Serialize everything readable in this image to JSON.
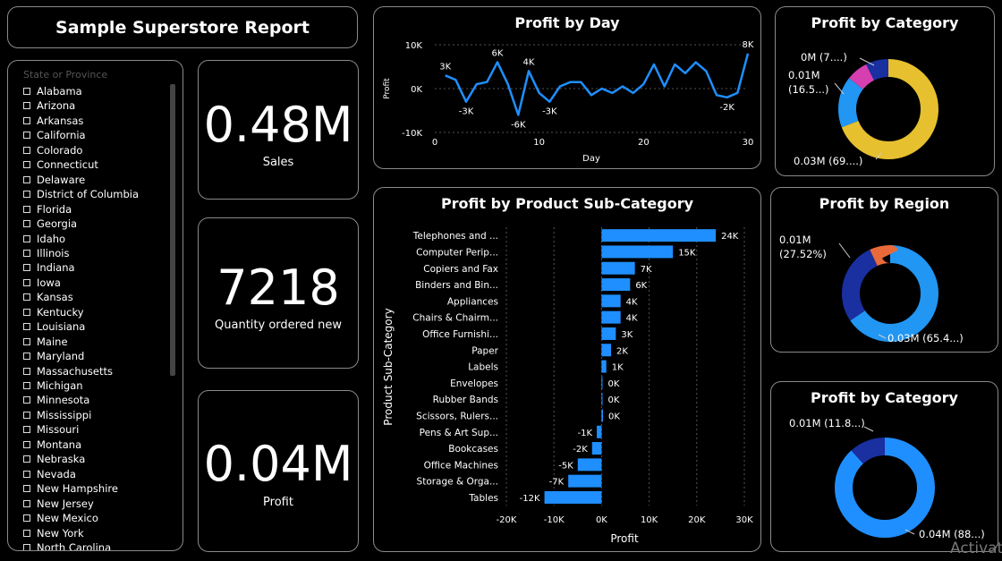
{
  "report_title": "Sample Superstore Report",
  "slicer": {
    "placeholder": "State or Province",
    "states": [
      "Alabama",
      "Arizona",
      "Arkansas",
      "California",
      "Colorado",
      "Connecticut",
      "Delaware",
      "District of Columbia",
      "Florida",
      "Georgia",
      "Idaho",
      "Illinois",
      "Indiana",
      "Iowa",
      "Kansas",
      "Kentucky",
      "Louisiana",
      "Maine",
      "Maryland",
      "Massachusetts",
      "Michigan",
      "Minnesota",
      "Mississippi",
      "Missouri",
      "Montana",
      "Nebraska",
      "Nevada",
      "New Hampshire",
      "New Jersey",
      "New Mexico",
      "New York",
      "North Carolina"
    ]
  },
  "kpis": [
    {
      "value": "0.48M",
      "label": "Sales"
    },
    {
      "value": "7218",
      "label": "Quantity ordered new"
    },
    {
      "value": "0.04M",
      "label": "Profit"
    }
  ],
  "watermark": "Activat",
  "colors": {
    "accent": "#1f8fff",
    "gold": "#e6c02e",
    "pink": "#d63fb0",
    "navy": "#1a2fa0",
    "orange": "#e86a3a",
    "blue": "#2196f3"
  },
  "chart_data": [
    {
      "type": "line",
      "title": "Profit by Day",
      "xlabel": "Day",
      "ylabel": "Profit",
      "xlim": [
        0,
        30
      ],
      "ylim": [
        -10000,
        10000
      ],
      "xticks": [
        "0",
        "10",
        "20",
        "30"
      ],
      "yticks": [
        "10K",
        "0K",
        "-10K"
      ],
      "x": [
        1,
        2,
        3,
        4,
        5,
        6,
        7,
        8,
        9,
        10,
        11,
        12,
        13,
        14,
        15,
        16,
        17,
        18,
        19,
        20,
        21,
        22,
        23,
        24,
        25,
        26,
        27,
        28,
        29,
        30
      ],
      "series": [
        {
          "values": [
            3000,
            2000,
            -3000,
            1000,
            1500,
            6000,
            1000,
            -6000,
            4000,
            -1000,
            -3000,
            500,
            1500,
            1500,
            -1500,
            0,
            -1000,
            500,
            -1000,
            1000,
            5500,
            500,
            5500,
            3500,
            6000,
            4000,
            -1500,
            -2000,
            -1000,
            8000
          ]
        }
      ],
      "data_labels": [
        {
          "i": 0,
          "text": "3K"
        },
        {
          "i": 2,
          "text": "-3K"
        },
        {
          "i": 5,
          "text": "6K"
        },
        {
          "i": 7,
          "text": "-6K"
        },
        {
          "i": 8,
          "text": "4K"
        },
        {
          "i": 10,
          "text": "-3K"
        },
        {
          "i": 27,
          "text": "-2K"
        },
        {
          "i": 29,
          "text": "8K"
        }
      ]
    },
    {
      "type": "bar",
      "orientation": "horizontal",
      "title": "Profit by Product Sub-Category",
      "xlabel": "Profit",
      "ylabel": "Product Sub-Category",
      "xlim": [
        -20000,
        30000
      ],
      "xticks": [
        "-20K",
        "-10K",
        "0K",
        "10K",
        "20K",
        "30K"
      ],
      "categories": [
        "Telephones and ...",
        "Computer Perip...",
        "Copiers and Fax",
        "Binders and Bin...",
        "Appliances",
        "Chairs & Chairm...",
        "Office Furnishi...",
        "Paper",
        "Labels",
        "Envelopes",
        "Rubber Bands",
        "Scissors, Rulers...",
        "Pens & Art Sup...",
        "Bookcases",
        "Office Machines",
        "Storage & Orga...",
        "Tables"
      ],
      "values": [
        24000,
        15000,
        7000,
        6000,
        4000,
        4000,
        3000,
        2000,
        1000,
        200,
        200,
        300,
        -1000,
        -2000,
        -5000,
        -7000,
        -12000
      ],
      "labels": [
        "24K",
        "15K",
        "7K",
        "6K",
        "4K",
        "4K",
        "3K",
        "2K",
        "1K",
        "0K",
        "0K",
        "0K",
        "-1K",
        "-2K",
        "-5K",
        "-7K",
        "-12K"
      ]
    },
    {
      "type": "pie",
      "title": "Profit by Category",
      "slices": [
        {
          "value": 69,
          "label": "0.03M (69....)",
          "color": "#e6c02e"
        },
        {
          "value": 16.5,
          "label": "0.01M (16.5...)",
          "color": "#2196f3"
        },
        {
          "value": 7,
          "label": "0M (7....)",
          "color": "#d63fb0"
        },
        {
          "value": 7.5,
          "label": "",
          "color": "#1a2fa0"
        }
      ]
    },
    {
      "type": "pie",
      "title": "Profit by Region",
      "slices": [
        {
          "value": 65.4,
          "label": "0.03M (65.4...)",
          "color": "#2196f3"
        },
        {
          "value": 27.52,
          "label": "0.01M (27.52%)",
          "color": "#1a2fa0"
        },
        {
          "value": 7.08,
          "label": "",
          "color": "#e86a3a"
        }
      ]
    },
    {
      "type": "pie",
      "title": "Profit by Category",
      "slices": [
        {
          "value": 88,
          "label": "0.04M (88...)",
          "color": "#1f8fff"
        },
        {
          "value": 11.8,
          "label": "0.01M (11.8...)",
          "color": "#1a2fa0"
        }
      ]
    }
  ]
}
